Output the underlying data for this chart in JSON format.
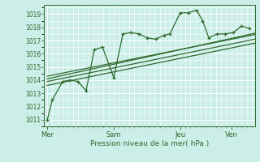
{
  "xlabel": "Pression niveau de la mer( hPa )",
  "bg_color": "#cceee8",
  "grid_color": "#ffffff",
  "line_color": "#2d6a2d",
  "yticks": [
    1011,
    1012,
    1013,
    1014,
    1015,
    1016,
    1017,
    1018,
    1019
  ],
  "ylim": [
    1010.5,
    1019.7
  ],
  "xlim": [
    -0.15,
    10.15
  ],
  "day_labels": [
    "Mer",
    "Sam",
    "Jeu",
    "Ven"
  ],
  "day_positions": [
    0,
    3.25,
    6.5,
    9.0
  ],
  "vline_positions": [
    0,
    3.25,
    6.5,
    9.0
  ],
  "series1_x": [
    0,
    0.25,
    0.75,
    1.1,
    1.5,
    1.9,
    2.3,
    2.7,
    3.25,
    3.7,
    4.1,
    4.5,
    4.9,
    5.3,
    5.7,
    6.0,
    6.5,
    6.9,
    7.3,
    7.6,
    7.9,
    8.3,
    8.7,
    9.1,
    9.5,
    9.9
  ],
  "series1_y": [
    1011.0,
    1012.5,
    1013.9,
    1014.0,
    1013.9,
    1013.2,
    1016.3,
    1016.5,
    1014.2,
    1017.5,
    1017.6,
    1017.5,
    1017.2,
    1017.1,
    1017.4,
    1017.5,
    1019.1,
    1019.1,
    1019.3,
    1018.5,
    1017.2,
    1017.5,
    1017.5,
    1017.6,
    1018.1,
    1017.9
  ],
  "series2_x": [
    0,
    10.15
  ],
  "series2_y": [
    1014.1,
    1017.55
  ],
  "series3_x": [
    0,
    10.15
  ],
  "series3_y": [
    1014.3,
    1017.45
  ],
  "series4_x": [
    0,
    10.15
  ],
  "series4_y": [
    1013.9,
    1017.1
  ],
  "series5_x": [
    0,
    10.15
  ],
  "series5_y": [
    1013.6,
    1016.8
  ]
}
